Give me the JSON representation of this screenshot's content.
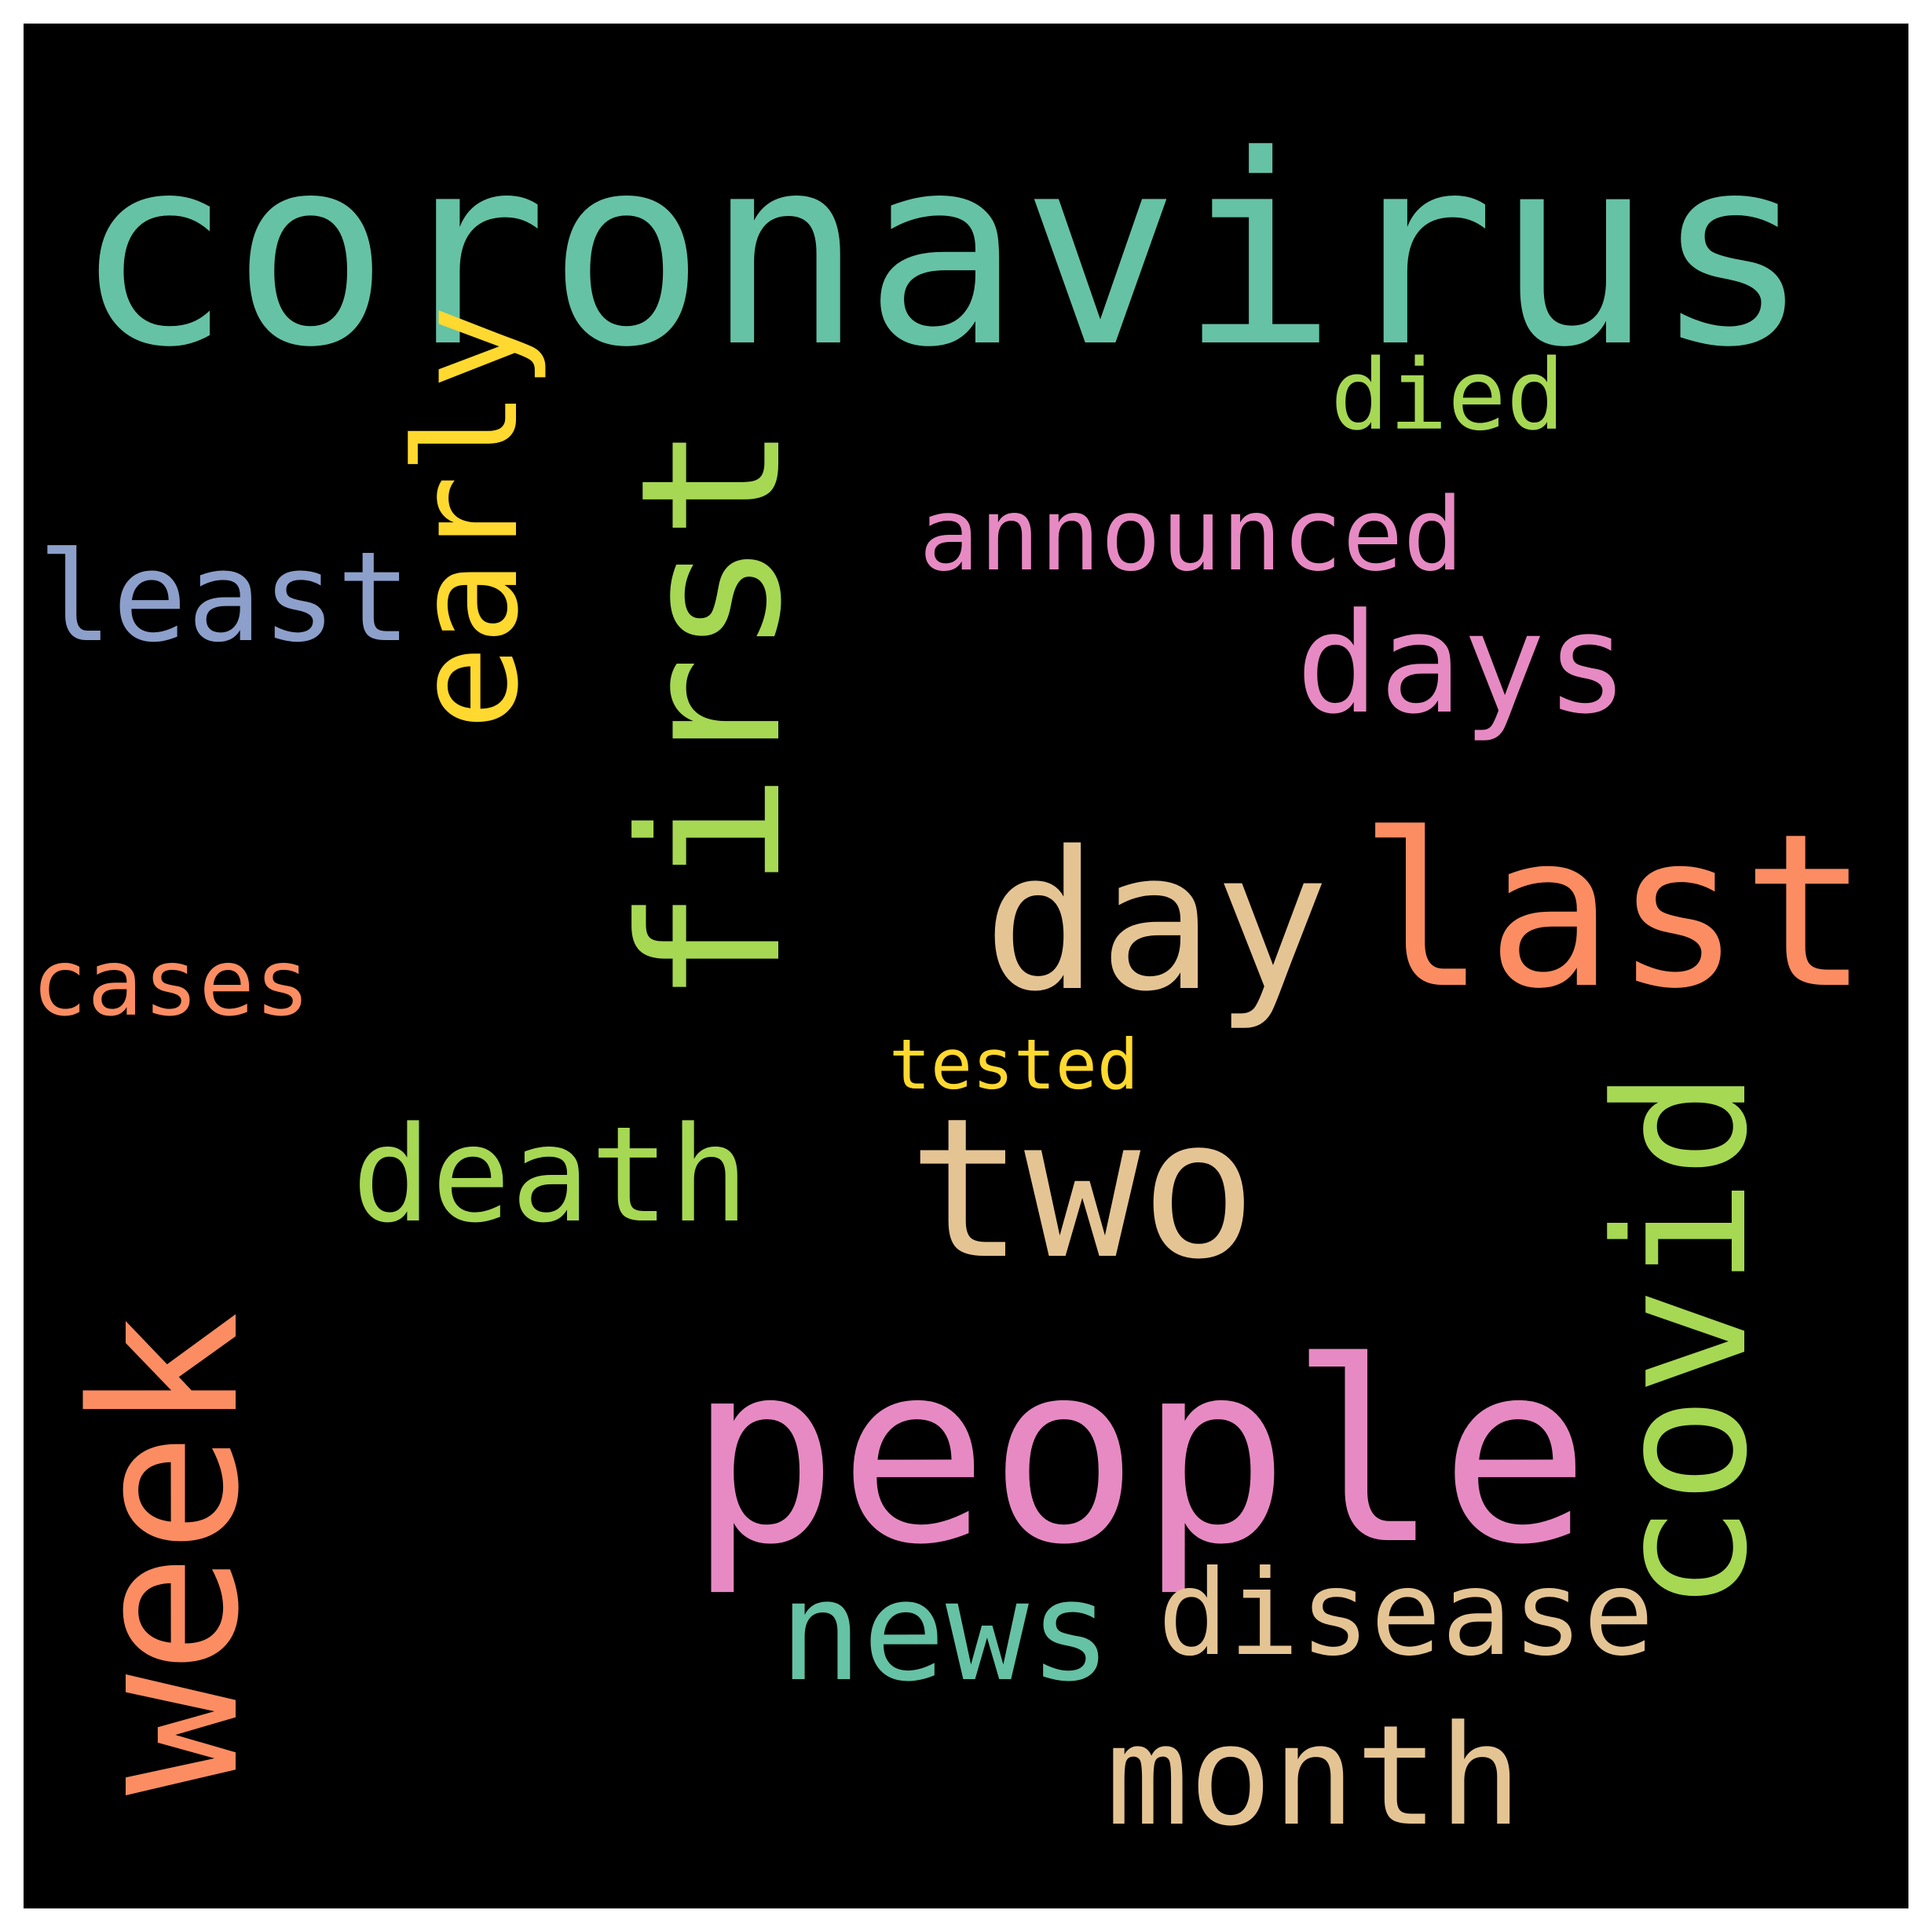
{
  "words": [
    {
      "text": "coronavirus",
      "color": "#66c2a5",
      "orientation": "horizontal"
    },
    {
      "text": "people",
      "color": "#e78ac3",
      "orientation": "horizontal"
    },
    {
      "text": "last",
      "color": "#fc8d62",
      "orientation": "horizontal"
    },
    {
      "text": "day",
      "color": "#e5c494",
      "orientation": "horizontal"
    },
    {
      "text": "two",
      "color": "#e5c494",
      "orientation": "horizontal"
    },
    {
      "text": "first",
      "color": "#a6d854",
      "orientation": "vertical"
    },
    {
      "text": "week",
      "color": "#fc8d62",
      "orientation": "vertical"
    },
    {
      "text": "covid",
      "color": "#a6d854",
      "orientation": "vertical"
    },
    {
      "text": "early",
      "color": "#ffd92f",
      "orientation": "vertical"
    },
    {
      "text": "days",
      "color": "#e78ac3",
      "orientation": "horizontal"
    },
    {
      "text": "news",
      "color": "#66c2a5",
      "orientation": "horizontal"
    },
    {
      "text": "month",
      "color": "#e5c494",
      "orientation": "horizontal"
    },
    {
      "text": "death",
      "color": "#a6d854",
      "orientation": "horizontal"
    },
    {
      "text": "disease",
      "color": "#e5c494",
      "orientation": "horizontal"
    },
    {
      "text": "least",
      "color": "#8da0cb",
      "orientation": "horizontal"
    },
    {
      "text": "announced",
      "color": "#e78ac3",
      "orientation": "horizontal"
    },
    {
      "text": "died",
      "color": "#a6d854",
      "orientation": "horizontal"
    },
    {
      "text": "cases",
      "color": "#fc8d62",
      "orientation": "horizontal"
    },
    {
      "text": "tested",
      "color": "#ffd92f",
      "orientation": "horizontal"
    }
  ],
  "background_color": "#000000",
  "frame_color": "#ffffff"
}
